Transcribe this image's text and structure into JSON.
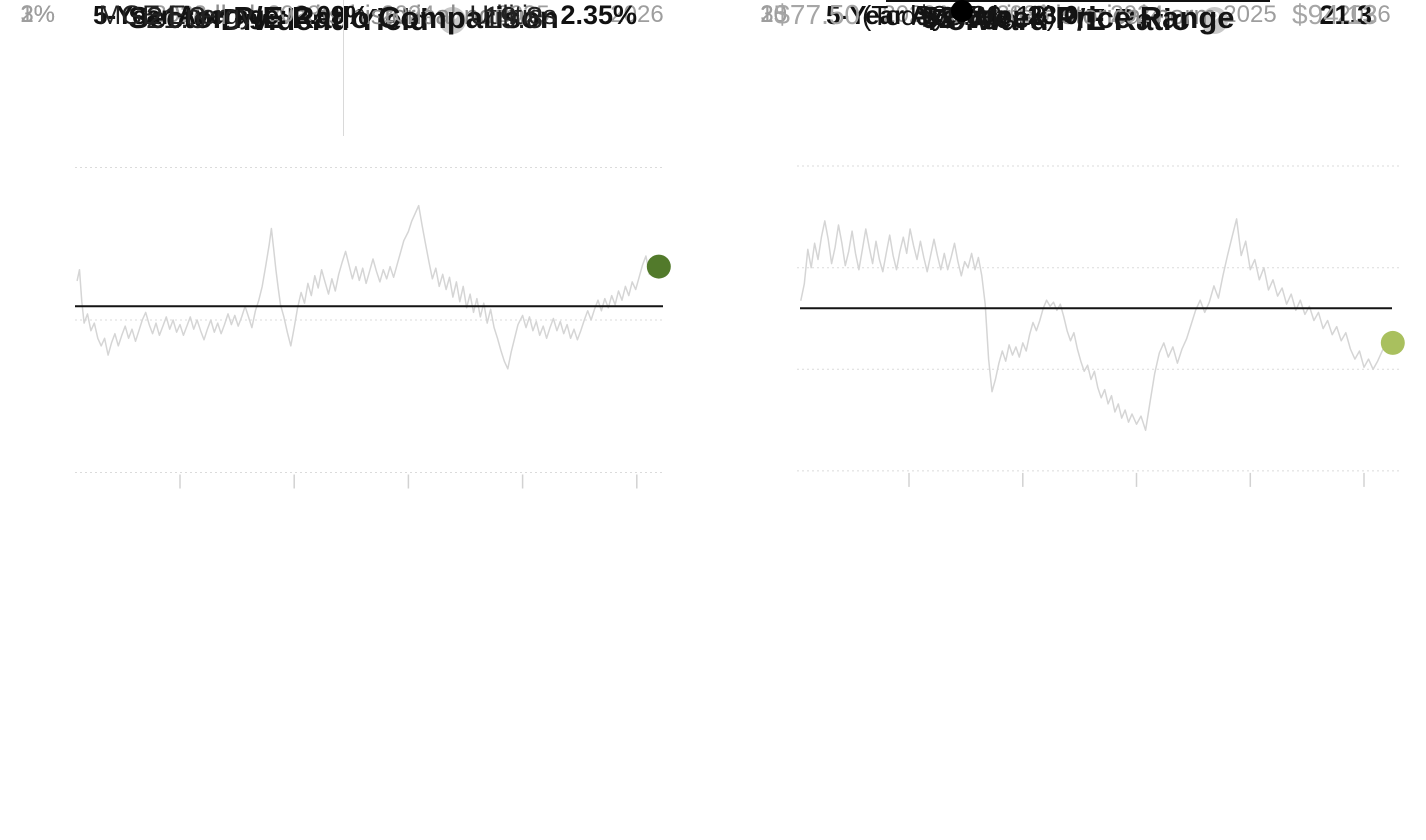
{
  "icons": {
    "help_glyph": "?"
  },
  "colors": {
    "accent_green_dark": "#527a2b",
    "accent_green_light": "#a9c05e",
    "series_gray": "#d5d5d5",
    "grid_gray": "#dbdbdb",
    "axis_text": "#9e9e9e",
    "subtitle_text": "#8d8d8d"
  },
  "chart_data": [
    {
      "type": "line",
      "title": "Dividend Yield",
      "subtitle": "Well above its historical norm",
      "help_icon": "question-mark",
      "avg_label": "5-Year Average: 2.09%",
      "avg_value": 2.09,
      "current_label": "2.35%",
      "current_value": 2.35,
      "dot_color": "#527a2b",
      "ylim": [
        1,
        3
      ],
      "ylabel": "Dividend Yield (%)",
      "grid": "horizontal-dotted",
      "legend": "none",
      "yticks": [
        {
          "label": "3%",
          "value": 3
        },
        {
          "label": "2%",
          "value": 2
        },
        {
          "label": "1%",
          "value": 1
        }
      ],
      "xticks": [
        {
          "label": "2022",
          "value": 2022
        },
        {
          "label": "2023",
          "value": 2023
        },
        {
          "label": "2024",
          "value": 2024
        },
        {
          "label": "2025",
          "value": 2025
        },
        {
          "label": "2026",
          "value": 2026
        }
      ],
      "series": {
        "x": [
          2021.1,
          2021.12,
          2021.14,
          2021.16,
          2021.19,
          2021.22,
          2021.25,
          2021.28,
          2021.31,
          2021.34,
          2021.37,
          2021.4,
          2021.43,
          2021.46,
          2021.49,
          2021.52,
          2021.55,
          2021.58,
          2021.61,
          2021.64,
          2021.67,
          2021.7,
          2021.73,
          2021.76,
          2021.79,
          2021.82,
          2021.85,
          2021.88,
          2021.91,
          2021.94,
          2021.97,
          2022.0,
          2022.03,
          2022.06,
          2022.09,
          2022.12,
          2022.15,
          2022.18,
          2022.21,
          2022.24,
          2022.27,
          2022.3,
          2022.33,
          2022.36,
          2022.39,
          2022.42,
          2022.45,
          2022.48,
          2022.51,
          2022.54,
          2022.57,
          2022.6,
          2022.63,
          2022.66,
          2022.69,
          2022.72,
          2022.75,
          2022.78,
          2022.8,
          2022.82,
          2022.84,
          2022.86,
          2022.88,
          2022.91,
          2022.94,
          2022.97,
          2023.0,
          2023.03,
          2023.06,
          2023.09,
          2023.12,
          2023.15,
          2023.18,
          2023.21,
          2023.24,
          2023.27,
          2023.3,
          2023.33,
          2023.36,
          2023.39,
          2023.42,
          2023.45,
          2023.48,
          2023.51,
          2023.54,
          2023.57,
          2023.6,
          2023.63,
          2023.66,
          2023.69,
          2023.72,
          2023.75,
          2023.78,
          2023.81,
          2023.84,
          2023.87,
          2023.9,
          2023.93,
          2023.96,
          2024.0,
          2024.03,
          2024.06,
          2024.09,
          2024.12,
          2024.15,
          2024.18,
          2024.21,
          2024.24,
          2024.27,
          2024.3,
          2024.33,
          2024.36,
          2024.39,
          2024.42,
          2024.45,
          2024.48,
          2024.51,
          2024.54,
          2024.57,
          2024.6,
          2024.63,
          2024.66,
          2024.69,
          2024.72,
          2024.75,
          2024.78,
          2024.81,
          2024.84,
          2024.87,
          2024.9,
          2024.93,
          2024.96,
          2025.0,
          2025.03,
          2025.06,
          2025.09,
          2025.12,
          2025.15,
          2025.18,
          2025.21,
          2025.24,
          2025.27,
          2025.3,
          2025.33,
          2025.36,
          2025.39,
          2025.42,
          2025.45,
          2025.48,
          2025.51,
          2025.54,
          2025.57,
          2025.6,
          2025.63,
          2025.66,
          2025.69,
          2025.72,
          2025.75,
          2025.78,
          2025.81,
          2025.84,
          2025.87,
          2025.9,
          2025.93,
          2025.96,
          2025.99,
          2026.02,
          2026.05,
          2026.08,
          2026.11,
          2026.14
        ],
        "y": [
          2.26,
          2.33,
          2.12,
          1.98,
          2.04,
          1.93,
          1.98,
          1.88,
          1.83,
          1.88,
          1.77,
          1.85,
          1.91,
          1.83,
          1.9,
          1.96,
          1.88,
          1.94,
          1.86,
          1.93,
          2.0,
          2.05,
          1.97,
          1.91,
          1.98,
          1.9,
          1.96,
          2.02,
          1.94,
          2.0,
          1.92,
          1.97,
          1.9,
          1.96,
          2.02,
          1.94,
          2.0,
          1.93,
          1.87,
          1.94,
          2.0,
          1.92,
          1.98,
          1.91,
          1.97,
          2.04,
          1.97,
          2.03,
          1.96,
          2.02,
          2.09,
          2.02,
          1.95,
          2.06,
          2.13,
          2.22,
          2.35,
          2.49,
          2.6,
          2.47,
          2.33,
          2.21,
          2.1,
          2.02,
          1.92,
          1.83,
          1.95,
          2.08,
          2.18,
          2.11,
          2.24,
          2.16,
          2.29,
          2.21,
          2.33,
          2.25,
          2.17,
          2.27,
          2.19,
          2.3,
          2.38,
          2.45,
          2.36,
          2.27,
          2.35,
          2.26,
          2.34,
          2.24,
          2.32,
          2.4,
          2.32,
          2.25,
          2.33,
          2.27,
          2.35,
          2.28,
          2.36,
          2.44,
          2.52,
          2.58,
          2.65,
          2.7,
          2.75,
          2.62,
          2.5,
          2.38,
          2.27,
          2.34,
          2.22,
          2.3,
          2.2,
          2.28,
          2.15,
          2.25,
          2.12,
          2.22,
          2.08,
          2.17,
          2.05,
          2.14,
          2.02,
          2.11,
          1.98,
          2.07,
          1.95,
          1.88,
          1.8,
          1.73,
          1.68,
          1.79,
          1.88,
          1.97,
          2.03,
          1.95,
          2.02,
          1.93,
          1.99,
          1.9,
          1.96,
          1.88,
          1.95,
          2.01,
          1.93,
          1.99,
          1.91,
          1.97,
          1.88,
          1.94,
          1.87,
          1.93,
          2.0,
          2.06,
          2.0,
          2.07,
          2.13,
          2.06,
          2.14,
          2.08,
          2.16,
          2.1,
          2.19,
          2.13,
          2.22,
          2.16,
          2.25,
          2.2,
          2.28,
          2.36,
          2.42,
          2.3,
          2.35
        ]
      }
    },
    {
      "type": "line",
      "title": "Forward P/E Ratio",
      "subtitle": "Near its historical norm",
      "help_icon": "question-mark",
      "avg_label": "5-Year Average: 23.0",
      "avg_value": 23.0,
      "current_label": "21.3",
      "current_value": 21.3,
      "dot_color": "#a9c05e",
      "ylim": [
        15,
        30
      ],
      "ylabel": "Forward P/E Ratio",
      "grid": "horizontal-dotted",
      "legend": "none",
      "yticks": [
        {
          "label": "30",
          "value": 30
        },
        {
          "label": "25",
          "value": 25
        },
        {
          "label": "20",
          "value": 20
        },
        {
          "label": "15",
          "value": 15
        }
      ],
      "xticks": [
        {
          "label": "2022",
          "value": 2022
        },
        {
          "label": "2023",
          "value": 2023
        },
        {
          "label": "2024",
          "value": 2024
        },
        {
          "label": "2025",
          "value": 2025
        },
        {
          "label": "2026",
          "value": 2026
        }
      ],
      "series": {
        "x": [
          2021.05,
          2021.08,
          2021.11,
          2021.14,
          2021.17,
          2021.2,
          2021.23,
          2021.26,
          2021.29,
          2021.32,
          2021.35,
          2021.38,
          2021.41,
          2021.44,
          2021.47,
          2021.5,
          2021.53,
          2021.56,
          2021.59,
          2021.62,
          2021.65,
          2021.68,
          2021.71,
          2021.74,
          2021.77,
          2021.8,
          2021.83,
          2021.86,
          2021.89,
          2021.92,
          2021.95,
          2021.98,
          2022.01,
          2022.04,
          2022.07,
          2022.1,
          2022.13,
          2022.16,
          2022.19,
          2022.22,
          2022.25,
          2022.28,
          2022.31,
          2022.34,
          2022.37,
          2022.4,
          2022.43,
          2022.46,
          2022.49,
          2022.52,
          2022.55,
          2022.58,
          2022.61,
          2022.64,
          2022.67,
          2022.7,
          2022.73,
          2022.76,
          2022.79,
          2022.82,
          2022.85,
          2022.88,
          2022.91,
          2022.94,
          2022.97,
          2023.0,
          2023.03,
          2023.06,
          2023.09,
          2023.12,
          2023.15,
          2023.18,
          2023.21,
          2023.24,
          2023.27,
          2023.3,
          2023.33,
          2023.36,
          2023.39,
          2023.42,
          2023.45,
          2023.48,
          2023.51,
          2023.54,
          2023.57,
          2023.6,
          2023.63,
          2023.66,
          2023.69,
          2023.72,
          2023.75,
          2023.78,
          2023.81,
          2023.84,
          2023.87,
          2023.9,
          2023.93,
          2023.96,
          2024.0,
          2024.04,
          2024.08,
          2024.12,
          2024.16,
          2024.2,
          2024.24,
          2024.28,
          2024.32,
          2024.36,
          2024.4,
          2024.44,
          2024.48,
          2024.52,
          2024.56,
          2024.6,
          2024.64,
          2024.68,
          2024.72,
          2024.76,
          2024.8,
          2024.84,
          2024.88,
          2024.92,
          2024.96,
          2025.0,
          2025.04,
          2025.08,
          2025.12,
          2025.16,
          2025.2,
          2025.24,
          2025.28,
          2025.32,
          2025.36,
          2025.4,
          2025.44,
          2025.48,
          2025.52,
          2025.56,
          2025.6,
          2025.64,
          2025.68,
          2025.72,
          2025.76,
          2025.8,
          2025.84,
          2025.88,
          2025.92,
          2025.96,
          2026.0,
          2026.04,
          2026.08,
          2026.12,
          2026.16,
          2026.2
        ],
        "y": [
          23.4,
          24.2,
          25.9,
          25.0,
          26.2,
          25.4,
          26.5,
          27.3,
          26.4,
          25.2,
          26.0,
          27.1,
          26.2,
          25.1,
          25.8,
          26.8,
          25.7,
          24.9,
          25.9,
          26.9,
          26.0,
          25.2,
          26.3,
          25.4,
          24.8,
          25.7,
          26.6,
          25.6,
          24.9,
          25.8,
          26.5,
          25.7,
          26.9,
          26.1,
          25.4,
          26.3,
          25.5,
          24.8,
          25.6,
          26.4,
          25.6,
          24.9,
          25.7,
          24.9,
          25.5,
          26.2,
          25.3,
          24.6,
          25.3,
          25.0,
          25.7,
          24.9,
          25.5,
          24.6,
          23.2,
          20.5,
          18.9,
          19.5,
          20.3,
          20.9,
          20.4,
          21.2,
          20.7,
          21.1,
          20.6,
          21.3,
          20.9,
          21.7,
          22.3,
          21.9,
          22.4,
          23.0,
          23.4,
          23.1,
          23.3,
          22.9,
          23.2,
          22.6,
          21.9,
          21.4,
          21.8,
          21.0,
          20.4,
          19.9,
          20.2,
          19.5,
          19.9,
          19.1,
          18.6,
          19.0,
          18.3,
          18.7,
          17.9,
          18.3,
          17.6,
          18.0,
          17.4,
          17.8,
          17.3,
          17.7,
          17.0,
          18.4,
          19.8,
          20.8,
          21.3,
          20.6,
          21.1,
          20.3,
          21.0,
          21.5,
          22.2,
          22.9,
          23.4,
          22.8,
          23.3,
          24.1,
          23.5,
          24.6,
          25.6,
          26.5,
          27.4,
          25.6,
          26.3,
          24.9,
          25.4,
          24.4,
          25.0,
          23.9,
          24.4,
          23.6,
          24.0,
          23.2,
          23.7,
          22.9,
          23.4,
          22.7,
          23.1,
          22.4,
          22.8,
          22.0,
          22.4,
          21.7,
          22.1,
          21.4,
          21.8,
          21.0,
          20.5,
          20.9,
          20.1,
          20.5,
          20.0,
          20.4,
          20.9,
          21.3
        ]
      }
    }
  ],
  "sector_comparison": {
    "title": "Sector P/E Ratio Comparison",
    "items": [
      {
        "name": "MGE Energy",
        "value": "21.3"
      },
      {
        "name": "Utilities",
        "value": "19.8"
      }
    ]
  },
  "price_range": {
    "title": "52-Week Price Range",
    "current_price": "$80.80",
    "current_note": "(Today, Feb 19)",
    "low_label": "$77.50",
    "high_label": "$94.13",
    "low_value": 77.5,
    "high_value": 94.13,
    "current_value": 80.8
  }
}
